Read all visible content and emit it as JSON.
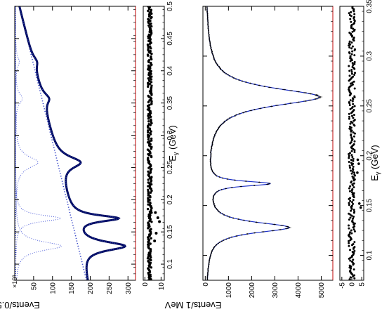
{
  "chart_data": [
    {
      "id": "top",
      "type": "line",
      "orientation": "rotated-90-ccw",
      "ylabel": "Events/0.5 MeV",
      "xlabel": "E_γ (GeV)",
      "xlabel_main": "E",
      "xlabel_sub": "γ",
      "xlabel_unit": " (GeV)",
      "y_multiplier": "×10³",
      "xlim": [
        0.075,
        0.5
      ],
      "ylim": [
        0,
        320
      ],
      "x_ticks": [
        0.1,
        0.15,
        0.2,
        0.25,
        0.3,
        0.35,
        0.4,
        0.45,
        0.5
      ],
      "x_tick_labels": [
        "0.1",
        "0.15",
        "0.2",
        "0.25",
        "0.3",
        "0.35",
        "0.4",
        "0.45",
        "0.5"
      ],
      "y_ticks": [
        50,
        100,
        150,
        200,
        250,
        300
      ],
      "y_tick_labels": [
        "50",
        "100",
        "150",
        "200",
        "250",
        "300"
      ],
      "background": {
        "x0": 0.075,
        "y0": 190,
        "x1": 0.5,
        "y1": 12
      },
      "peaks": [
        {
          "x": 0.128,
          "amp": 122,
          "width": 0.0085
        },
        {
          "x": 0.171,
          "amp": 120,
          "width": 0.006
        },
        {
          "x": 0.258,
          "amp": 60,
          "width": 0.011
        },
        {
          "x": 0.357,
          "amp": 18,
          "width": 0.01
        },
        {
          "x": 0.414,
          "amp": 10,
          "width": 0.01
        }
      ],
      "residual": {
        "ylim": [
          -1,
          12
        ],
        "y_ticks": [
          0,
          10
        ],
        "y_tick_labels": [
          "0",
          "10"
        ],
        "base": 3,
        "noise": 1.2,
        "outliers": [
          {
            "x": 0.166,
            "y": 9
          },
          {
            "x": 0.172,
            "y": 8
          },
          {
            "x": 0.18,
            "y": 6.5
          },
          {
            "x": 0.136,
            "y": 6
          },
          {
            "x": 0.148,
            "y": 7
          }
        ]
      }
    },
    {
      "id": "bottom",
      "type": "line",
      "orientation": "rotated-90-ccw",
      "ylabel": "Events/1 MeV",
      "xlabel": "E_γ (GeV)",
      "xlabel_main": "E",
      "xlabel_sub": "γ",
      "xlabel_unit": " (GeV)",
      "xlim": [
        0.075,
        0.35
      ],
      "ylim": [
        -100,
        5500
      ],
      "x_ticks": [
        0.1,
        0.15,
        0.2,
        0.25,
        0.3,
        0.35
      ],
      "x_tick_labels": [
        "0.1",
        "0.15",
        "0.2",
        "0.25",
        "0.3",
        "0.35"
      ],
      "y_ticks": [
        0,
        1000,
        2000,
        3000,
        4000,
        5000
      ],
      "y_tick_labels": [
        "0",
        "1000",
        "2000",
        "3000",
        "4000",
        "5000"
      ],
      "background": {
        "x0": 0.075,
        "y0": 20,
        "x1": 0.35,
        "y1": 5
      },
      "peaks": [
        {
          "x": 0.128,
          "amp": 3550,
          "width": 0.0065
        },
        {
          "x": 0.172,
          "amp": 2650,
          "width": 0.003
        },
        {
          "x": 0.259,
          "amp": 4900,
          "width": 0.011
        }
      ],
      "residual": {
        "ylim": [
          -6,
          6
        ],
        "y_ticks": [
          -5,
          0,
          5
        ],
        "y_tick_labels": [
          "-5",
          "0",
          "5"
        ],
        "base": 0,
        "noise": 1.6,
        "outliers": [
          {
            "x": 0.148,
            "y": 4.5
          },
          {
            "x": 0.152,
            "y": 3.8
          },
          {
            "x": 0.192,
            "y": 3.5
          },
          {
            "x": 0.196,
            "y": 3.0
          },
          {
            "x": 0.183,
            "y": 2.8
          }
        ]
      }
    }
  ]
}
